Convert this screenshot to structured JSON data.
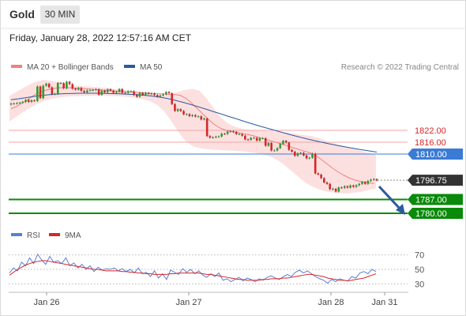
{
  "header": {
    "title": "Gold",
    "timeframe": "30 MIN"
  },
  "timestamp": "Friday, January 28, 2022 12:57:16 AM CET",
  "legend": [
    {
      "label": "MA 20 + Bollinger Bands",
      "color": "#f08080"
    },
    {
      "label": "MA 50",
      "color": "#2b5aa0"
    }
  ],
  "credit": "Research © 2022 Trading Central",
  "colors": {
    "up": "#2ca02c",
    "down": "#d62728",
    "ma20": "#f08080",
    "ma50": "#2b5aa0",
    "band": "#fbd5d5",
    "resistance": "#f4a6a6",
    "pivot": "#3a7bd5",
    "support": "#0a8a0a",
    "price_tag": "#333333",
    "rsi": "#5b7fd6",
    "rsi_ma": "#d62728"
  },
  "chart_data": [
    {
      "type": "candlestick",
      "ylim": [
        1776,
        1848
      ],
      "x_ticks": [
        "Jan 26",
        "Jan 27",
        "Jan 28",
        "Jan 31"
      ],
      "levels": [
        {
          "value": 1822.0,
          "label": "1822.00",
          "kind": "resistance"
        },
        {
          "value": 1816.0,
          "label": "1816.00",
          "kind": "resistance"
        },
        {
          "value": 1810.0,
          "label": "1810.00",
          "kind": "pivot"
        },
        {
          "value": 1796.75,
          "label": "1796.75",
          "kind": "last_price"
        },
        {
          "value": 1787.0,
          "label": "1787.00",
          "kind": "support"
        },
        {
          "value": 1780.0,
          "label": "1780.00",
          "kind": "support"
        }
      ],
      "close": [
        1835.5,
        1835.6,
        1835.8,
        1836.0,
        1836.4,
        1837.4,
        1836.4,
        1837.2,
        1836.9,
        1844.2,
        1838.3,
        1844.6,
        1845.6,
        1843.8,
        1840.3,
        1840.5,
        1846.0,
        1845.9,
        1843.3,
        1846.6,
        1845.4,
        1843.1,
        1842.6,
        1843.5,
        1842.0,
        1841.3,
        1842.2,
        1842.3,
        1842.4,
        1842.8,
        1840.0,
        1842.1,
        1841.2,
        1842.8,
        1842.1,
        1841.0,
        1841.5,
        1842.9,
        1841.0,
        1841.0,
        1841.8,
        1841.8,
        1839.9,
        1839.0,
        1841.0,
        1840.0,
        1841.0,
        1840.4,
        1840.7,
        1839.9,
        1839.1,
        1839.7,
        1840.2,
        1841.4,
        1840.8,
        1835.3,
        1831.8,
        1832.7,
        1831.8,
        1830.1,
        1830.2,
        1829.2,
        1829.7,
        1829.0,
        1829.1,
        1827.5,
        1828.0,
        1819.1,
        1818.3,
        1818.5,
        1818.8,
        1818.9,
        1820.3,
        1820.2,
        1821.4,
        1821.5,
        1821.2,
        1820.1,
        1820.1,
        1819.3,
        1817.4,
        1817.2,
        1818.2,
        1818.2,
        1816.8,
        1818.0,
        1818.0,
        1814.2,
        1815.6,
        1811.8,
        1811.8,
        1813.0,
        1815.1,
        1816.7,
        1815.8,
        1812.1,
        1811.2,
        1809.1,
        1810.4,
        1810.6,
        1809.3,
        1807.8,
        1808.1,
        1810.2,
        1800.2,
        1799.6,
        1797.8,
        1795.6,
        1794.9,
        1792.2,
        1792.4,
        1791.0,
        1793.1,
        1792.9,
        1793.7,
        1793.0,
        1794.1,
        1793.4,
        1794.2,
        1794.9,
        1795.9,
        1794.9,
        1796.4,
        1797.0,
        1797.3,
        1796.6
      ],
      "ma20": [
        1833.0,
        1834.0,
        1835.5,
        1837.0,
        1839.0,
        1840.5,
        1841.5,
        1842.5,
        1843.0,
        1843.5,
        1843.6,
        1843.6,
        1843.5,
        1843.3,
        1843.2,
        1843.0,
        1842.8,
        1842.6,
        1842.4,
        1842.2,
        1842.0,
        1841.8,
        1841.6,
        1841.5,
        1841.4,
        1841.2,
        1841.0,
        1840.8,
        1840.6,
        1840.5,
        1840.4,
        1840.2,
        1840.1,
        1839.8,
        1838.5,
        1836.5,
        1834.0,
        1831.5,
        1829.0,
        1826.5,
        1824.5,
        1823.0,
        1822.0,
        1821.5,
        1821.0,
        1820.5,
        1820.0,
        1819.5,
        1818.8,
        1818.0,
        1817.3,
        1816.5,
        1815.8,
        1815.0,
        1814.2,
        1813.3,
        1812.5,
        1811.7,
        1811.0,
        1810.0,
        1808.5,
        1806.5,
        1804.5,
        1802.5,
        1800.8,
        1799.3,
        1798.0,
        1797.0,
        1796.3,
        1795.8,
        1795.4,
        1795.1
      ],
      "ma50": [
        1837.5,
        1838.0,
        1838.6,
        1839.2,
        1839.7,
        1840.1,
        1840.4,
        1840.6,
        1840.7,
        1840.8,
        1840.8,
        1840.8,
        1840.7,
        1840.6,
        1840.5,
        1840.3,
        1840.1,
        1839.8,
        1839.4,
        1838.9,
        1838.2,
        1837.3,
        1836.3,
        1835.2,
        1834.0,
        1832.8,
        1831.5,
        1830.3,
        1829.0,
        1827.8,
        1826.5,
        1825.3,
        1824.1,
        1823.0,
        1821.9,
        1820.8,
        1819.7,
        1818.7,
        1817.7,
        1816.8,
        1815.9,
        1815.1,
        1814.3,
        1813.6,
        1812.9,
        1812.2,
        1811.6,
        1811.0
      ],
      "bb_upper": [
        1839.5,
        1841.5,
        1843.5,
        1845.5,
        1847.0,
        1847.5,
        1847.0,
        1846.5,
        1845.5,
        1844.8,
        1844.5,
        1844.3,
        1844.0,
        1843.7,
        1843.4,
        1843.0,
        1842.6,
        1842.1,
        1841.6,
        1841.0,
        1840.4,
        1839.8,
        1839.6,
        1840.5,
        1841.5,
        1842.5,
        1843.0,
        1842.0,
        1838.0,
        1833.0,
        1828.5,
        1825.5,
        1823.8,
        1822.8,
        1822.2,
        1822.0,
        1821.8,
        1821.6,
        1821.4,
        1821.0,
        1820.5,
        1820.0,
        1819.5,
        1819.0,
        1818.0,
        1816.5,
        1815.5,
        1814.5,
        1813.5,
        1812.5,
        1811.5,
        1810.5,
        1809.5
      ],
      "bb_lower": [
        1826.5,
        1829.0,
        1831.5,
        1833.5,
        1835.5,
        1837.0,
        1838.0,
        1838.6,
        1839.0,
        1839.2,
        1839.3,
        1839.4,
        1839.5,
        1839.5,
        1839.4,
        1839.3,
        1839.1,
        1838.8,
        1838.4,
        1837.7,
        1836.6,
        1834.8,
        1831.5,
        1826.5,
        1821.0,
        1816.5,
        1814.0,
        1813.0,
        1812.5,
        1812.2,
        1812.0,
        1811.8,
        1811.6,
        1811.4,
        1811.0,
        1810.5,
        1809.8,
        1808.8,
        1807.0,
        1804.5,
        1801.5,
        1798.5,
        1795.5,
        1793.5,
        1792.0,
        1791.0,
        1790.5,
        1790.2,
        1790.0,
        1790.5,
        1791.0,
        1791.8,
        1792.5
      ]
    },
    {
      "type": "line",
      "title": "RSI",
      "legend": [
        "RSI",
        "9MA"
      ],
      "ylim": [
        15,
        85
      ],
      "y_ticks": [
        70,
        50,
        30
      ],
      "rsi": [
        45,
        52,
        48,
        60,
        55,
        66,
        58,
        71,
        63,
        57,
        68,
        60,
        62,
        58,
        66,
        55,
        59,
        52,
        57,
        50,
        55,
        47,
        53,
        49,
        51,
        50,
        52,
        48,
        51,
        47,
        50,
        45,
        52,
        44,
        46,
        40,
        48,
        38,
        44,
        36,
        49,
        46,
        43,
        51,
        46,
        50,
        44,
        48,
        42,
        39,
        44,
        40,
        45,
        35,
        37,
        33,
        36,
        39,
        34,
        38,
        36,
        33,
        37,
        35,
        39,
        41,
        38,
        36,
        40,
        43,
        40,
        46,
        49,
        45,
        48,
        44,
        40,
        37,
        35,
        31,
        36,
        33,
        37,
        35,
        34,
        40,
        38,
        45,
        47,
        44,
        50,
        47
      ],
      "ma9": [
        42,
        46,
        50,
        53,
        56,
        58,
        60,
        61,
        62,
        62,
        61,
        60,
        59,
        58,
        57,
        56,
        55,
        54,
        53,
        52,
        51,
        50,
        50,
        49,
        48,
        48,
        48,
        48,
        47,
        47,
        46,
        46,
        45,
        45,
        44,
        44,
        43,
        43,
        43,
        43,
        44,
        44,
        45,
        45,
        45,
        45,
        45,
        45,
        44,
        43,
        43,
        42,
        41,
        40,
        39,
        38,
        37,
        36,
        36,
        35,
        35,
        35,
        35,
        36,
        36,
        37,
        37,
        37,
        38,
        38,
        39,
        40,
        41,
        42,
        43,
        43,
        42,
        41,
        40,
        38,
        37,
        36,
        35,
        35,
        34,
        35,
        36,
        37,
        38,
        40,
        42,
        44
      ]
    }
  ]
}
